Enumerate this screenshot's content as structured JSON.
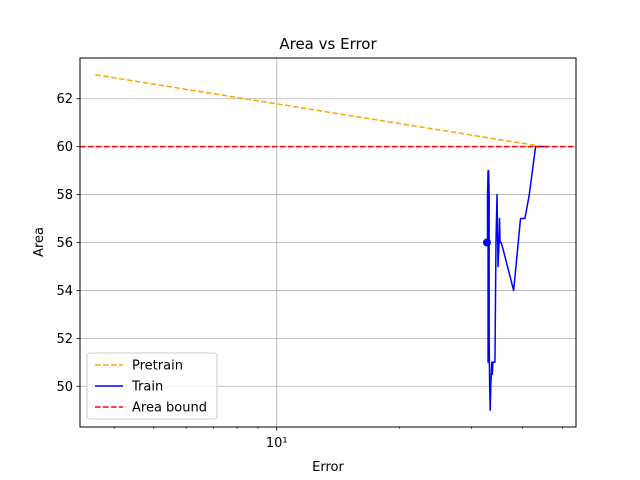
{
  "chart_data": {
    "type": "line",
    "title": "Area vs Error",
    "xlabel": "Error",
    "ylabel": "Area",
    "xscale": "log",
    "xlim": [
      3.3,
      54
    ],
    "ylim": [
      48.3,
      63.7
    ],
    "x_ticks": [
      {
        "value": 10,
        "label": "10¹"
      }
    ],
    "y_ticks": [
      50,
      52,
      54,
      56,
      58,
      60,
      62
    ],
    "grid": true,
    "legend_position": "lower-left",
    "series": [
      {
        "name": "Pretrain",
        "color": "#ffa500",
        "style": "dashed",
        "x": [
          3.6,
          45
        ],
        "y": [
          63,
          60
        ]
      },
      {
        "name": "Train",
        "color": "#0000ff",
        "style": "solid",
        "x": [
          32.8,
          32.8,
          32.9,
          32.9,
          33.0,
          33.1,
          33.1,
          33.2,
          33.3,
          33.4,
          33.5,
          33.6,
          33.7,
          33.7,
          33.8,
          33.8,
          33.9,
          34.0,
          34.1,
          34.2,
          34.4,
          34.6,
          34.8,
          35.0,
          35.1,
          35.2,
          35.4,
          35.7,
          38.0,
          38.5,
          39.0,
          39.5,
          40.5,
          41.5,
          43.0,
          46.5
        ],
        "y": [
          56,
          58,
          59,
          51,
          59,
          58,
          52,
          50,
          49,
          50,
          50.5,
          51,
          51,
          50.5,
          51,
          51,
          51,
          51,
          51,
          51,
          56,
          58,
          55,
          56,
          57,
          56,
          56,
          55.8,
          54,
          55,
          56,
          57,
          57,
          58,
          60,
          60
        ]
      },
      {
        "name": "Area bound",
        "color": "#ff0000",
        "style": "dashed",
        "y_const": 60
      }
    ],
    "highlight_point": {
      "x": 32.7,
      "y": 56,
      "color": "#0000ff"
    }
  }
}
